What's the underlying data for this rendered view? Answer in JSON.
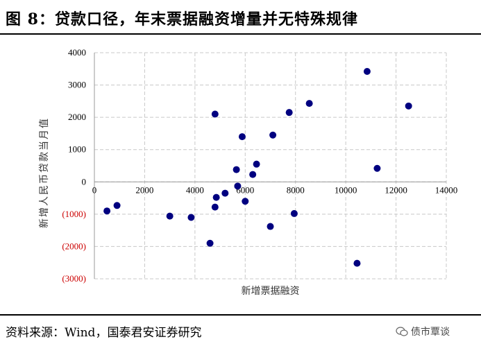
{
  "header": {
    "title": "图 8：贷款口径，年末票据融资增量并无特殊规律"
  },
  "footer": {
    "source": "资料来源：Wind，国泰君安证券研究",
    "logo_text": "债市覃谈",
    "logo_icon": "wechat-icon"
  },
  "colors": {
    "marker": "#000080",
    "negative_tick": "#cc0000",
    "grid": "#c8c8c8"
  },
  "chart_data": {
    "type": "scatter",
    "title": "",
    "xlabel": "新增票据融资",
    "ylabel": "新增人民币贷款当月值",
    "xlim": [
      0,
      14000
    ],
    "ylim": [
      -3000,
      4000
    ],
    "xticks": [
      "0",
      "2000",
      "4000",
      "6000",
      "8000",
      "10000",
      "12000",
      "14000"
    ],
    "yticks": [
      "4000",
      "3000",
      "2000",
      "1000",
      "0",
      "(1000)",
      "(2000)",
      "(3000)"
    ],
    "grid": true,
    "legend": "none",
    "points": [
      {
        "x": 500,
        "y": -900
      },
      {
        "x": 900,
        "y": -730
      },
      {
        "x": 3000,
        "y": -1060
      },
      {
        "x": 3850,
        "y": -1100
      },
      {
        "x": 4600,
        "y": -1900
      },
      {
        "x": 4800,
        "y": 2100
      },
      {
        "x": 4850,
        "y": -480
      },
      {
        "x": 4800,
        "y": -780
      },
      {
        "x": 5200,
        "y": -350
      },
      {
        "x": 5650,
        "y": 380
      },
      {
        "x": 5700,
        "y": -130
      },
      {
        "x": 5880,
        "y": 1400
      },
      {
        "x": 6000,
        "y": -600
      },
      {
        "x": 6300,
        "y": 230
      },
      {
        "x": 6450,
        "y": 550
      },
      {
        "x": 7000,
        "y": -1380
      },
      {
        "x": 7100,
        "y": 1450
      },
      {
        "x": 7750,
        "y": 2150
      },
      {
        "x": 7950,
        "y": -980
      },
      {
        "x": 8550,
        "y": 2430
      },
      {
        "x": 10450,
        "y": -2520
      },
      {
        "x": 10850,
        "y": 3420
      },
      {
        "x": 11250,
        "y": 420
      },
      {
        "x": 12500,
        "y": 2350
      }
    ]
  }
}
